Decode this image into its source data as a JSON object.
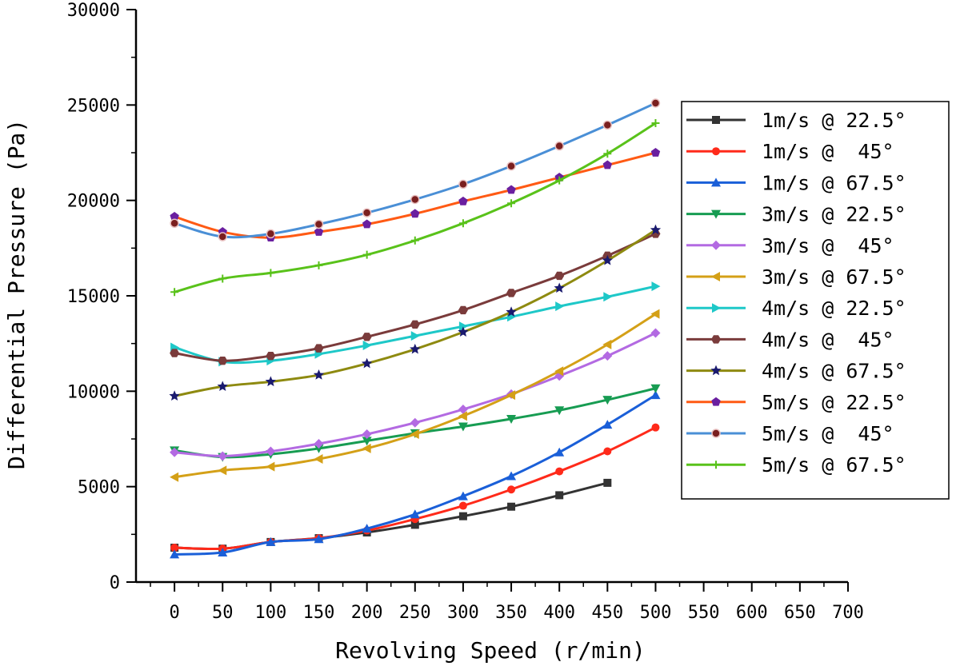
{
  "chart_data": {
    "type": "line",
    "xlabel": "Revolving Speed (r/min)",
    "ylabel": "Differential Pressure (Pa)",
    "xlim": [
      -40,
      700
    ],
    "ylim": [
      0,
      30000
    ],
    "xticks": [
      0,
      50,
      100,
      150,
      200,
      250,
      300,
      350,
      400,
      450,
      500,
      550,
      600,
      650,
      700
    ],
    "yticks": [
      0,
      5000,
      10000,
      15000,
      20000,
      25000,
      30000
    ],
    "x": [
      0,
      50,
      100,
      150,
      200,
      250,
      300,
      350,
      400,
      450,
      500
    ],
    "grid": false,
    "legend_position": "right",
    "series": [
      {
        "name": "1m/s @ 22.5°",
        "color": "#333333",
        "marker": "square",
        "values": [
          1800,
          1750,
          2100,
          2300,
          2600,
          3000,
          3450,
          3950,
          4550,
          5200,
          null
        ]
      },
      {
        "name": "1m/s @  45°",
        "color": "#ff2a1a",
        "marker": "circle",
        "values": [
          1800,
          1750,
          2100,
          2300,
          2700,
          3300,
          4000,
          4850,
          5800,
          6850,
          8100
        ]
      },
      {
        "name": "1m/s @ 67.5°",
        "color": "#1a5fd8",
        "marker": "triangle-up",
        "values": [
          1450,
          1550,
          2100,
          2250,
          2800,
          3550,
          4500,
          5550,
          6800,
          8250,
          9800
        ]
      },
      {
        "name": "3m/s @ 22.5°",
        "color": "#179c52",
        "marker": "triangle-down",
        "values": [
          6900,
          6550,
          6700,
          7000,
          7400,
          7800,
          8150,
          8550,
          9000,
          9550,
          10150
        ]
      },
      {
        "name": "3m/s @  45°",
        "color": "#b36ae2",
        "marker": "diamond",
        "values": [
          6800,
          6600,
          6850,
          7250,
          7750,
          8350,
          9050,
          9850,
          10800,
          11850,
          13050
        ]
      },
      {
        "name": "3m/s @ 67.5°",
        "color": "#d4a017",
        "marker": "triangle-left",
        "values": [
          5500,
          5850,
          6050,
          6450,
          7000,
          7750,
          8700,
          9800,
          11050,
          12450,
          14050
        ]
      },
      {
        "name": "4m/s @ 22.5°",
        "color": "#1ec8c8",
        "marker": "triangle-right",
        "values": [
          12300,
          11550,
          11600,
          11950,
          12400,
          12900,
          13400,
          13900,
          14450,
          14950,
          15500
        ]
      },
      {
        "name": "4m/s @  45°",
        "color": "#7a3b3b",
        "marker": "hexagon",
        "values": [
          12000,
          11600,
          11850,
          12250,
          12850,
          13500,
          14250,
          15150,
          16050,
          17100,
          18250
        ]
      },
      {
        "name": "4m/s @ 67.5°",
        "color": "#8e8a10",
        "marker": "star",
        "values": [
          9750,
          10250,
          10500,
          10850,
          11450,
          12200,
          13100,
          14150,
          15400,
          16850,
          18450
        ]
      },
      {
        "name": "5m/s @ 22.5°",
        "color": "#ff5a14",
        "marker": "pentagon",
        "values": [
          19150,
          18350,
          18050,
          18350,
          18750,
          19300,
          19950,
          20550,
          21200,
          21850,
          22500
        ]
      },
      {
        "name": "5m/s @  45°",
        "color": "#4a8fd6",
        "marker": "ring",
        "values": [
          18800,
          18100,
          18250,
          18750,
          19350,
          20050,
          20850,
          21800,
          22850,
          23950,
          25100
        ]
      },
      {
        "name": "5m/s @ 67.5°",
        "color": "#59c21a",
        "marker": "plus",
        "values": [
          15200,
          15900,
          16200,
          16600,
          17150,
          17900,
          18800,
          19850,
          21050,
          22450,
          24050
        ]
      }
    ]
  }
}
